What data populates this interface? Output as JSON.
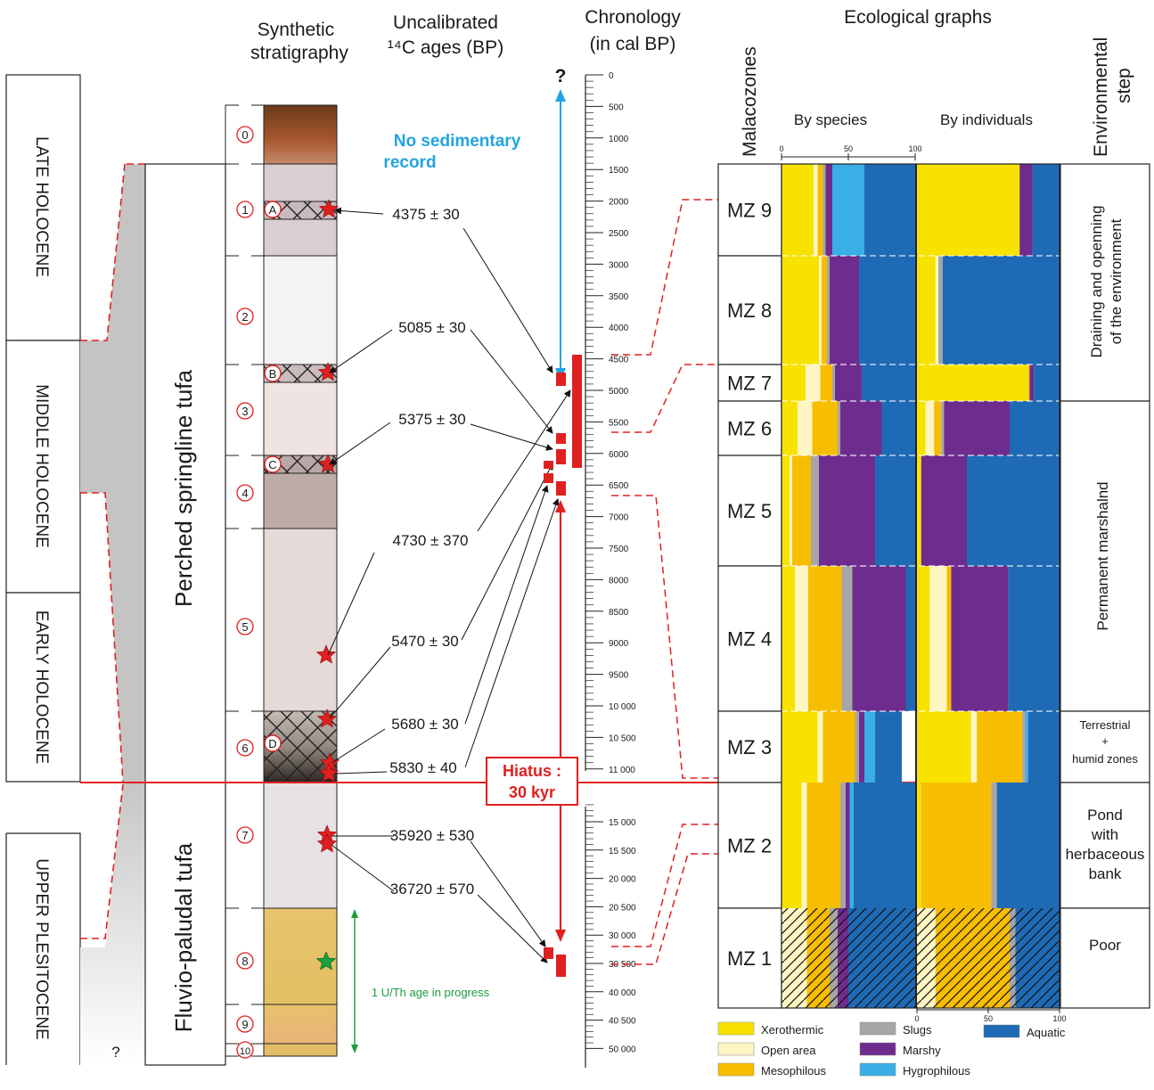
{
  "headers": {
    "stratigraphy": [
      "Synthetic",
      "stratigraphy"
    ],
    "ages": [
      "Uncalibrated",
      "¹⁴C ages (BP)"
    ],
    "chronology": [
      "Chronology",
      "(in cal BP)"
    ],
    "malacozones": "Malacozones",
    "ecological": "Ecological graphs",
    "by_species": "By species",
    "by_individuals": "By individuals",
    "environmental": [
      "Environmental",
      "step"
    ]
  },
  "epochs": [
    "LATE HOLOCENE",
    "MIDDLE HOLOCENE",
    "EARLY HOLOCENE",
    "UPPER PLESITOCENE"
  ],
  "units": [
    "Perched springline tufa",
    "Fluvio-paludal tufa"
  ],
  "layers": [
    "0",
    "1",
    "2",
    "3",
    "4",
    "5",
    "6",
    "7",
    "8",
    "9",
    "10"
  ],
  "markers": [
    "A",
    "B",
    "C",
    "D"
  ],
  "dates": [
    "4375 ± 30",
    "5085 ± 30",
    "5375 ± 30",
    "4730 ± 370",
    "5470 ± 30",
    "5680 ± 30",
    "5830 ± 40",
    "35920 ± 530",
    "36720 ± 570"
  ],
  "chronology_ticks_upper": [
    "0",
    "500",
    "1000",
    "1500",
    "2000",
    "2500",
    "3000",
    "3500",
    "4000",
    "4500",
    "5000",
    "5500",
    "6000",
    "6500",
    "7000",
    "7500",
    "8000",
    "8500",
    "9000",
    "9500",
    "10 000",
    "10 500",
    "11 000"
  ],
  "chronology_ticks_lower": [
    "15 000",
    "15 500",
    "20 000",
    "20 500",
    "30 000",
    "30 500",
    "40 000",
    "40 500",
    "50 000"
  ],
  "no_record": [
    "No sedimentary",
    "record"
  ],
  "question_mark": "?",
  "hiatus": [
    "Hiatus :",
    "30 kyr"
  ],
  "uth_note": "1 U/Th age in progress",
  "axis_ticks": [
    "0",
    "50",
    "100"
  ],
  "colors": {
    "xerothermic": "#f7e200",
    "open_area": "#fdf5c2",
    "mesophilous": "#f7bd00",
    "slugs": "#a6a6a6",
    "marshy": "#6f2c8f",
    "hygrophilous": "#3aaee6",
    "aquatic": "#1f6ab5",
    "red": "#e02020",
    "blue": "#23a3df",
    "green": "#1b9e3b"
  },
  "malacozones": [
    {
      "label": "MZ 9",
      "species": [
        24,
        3,
        4,
        2,
        5,
        24,
        38
      ],
      "individuals": [
        72,
        0,
        0,
        0,
        9,
        0,
        19
      ]
    },
    {
      "label": "MZ 8",
      "species": [
        28,
        2,
        4,
        2,
        22,
        0,
        42
      ],
      "individuals": [
        13,
        2,
        0,
        3,
        0,
        0,
        82
      ]
    },
    {
      "label": "MZ 7",
      "species": [
        18,
        11,
        9,
        2,
        20,
        0,
        40
      ],
      "individuals": [
        78,
        0,
        1,
        0,
        3,
        0,
        18
      ]
    },
    {
      "label": "MZ 6",
      "species": [
        12,
        11,
        19,
        2,
        31,
        0,
        25
      ],
      "individuals": [
        6,
        6,
        5,
        2,
        46,
        0,
        35
      ]
    },
    {
      "label": "MZ 5",
      "species": [
        6,
        2,
        14,
        6,
        42,
        0,
        30
      ],
      "individuals": [
        3,
        0,
        0,
        0,
        32,
        0,
        65
      ]
    },
    {
      "label": "MZ 4",
      "species": [
        10,
        10,
        25,
        8,
        40,
        0,
        7
      ],
      "individuals": [
        9,
        12,
        3,
        0,
        40,
        0,
        36
      ]
    },
    {
      "label": "MZ 3",
      "species": [
        27,
        4,
        24,
        3,
        4,
        8,
        20
      ],
      "individuals": [
        38,
        4,
        32,
        2,
        0,
        2,
        22
      ]
    },
    {
      "label": "MZ 2",
      "species": [
        15,
        4,
        25,
        4,
        3,
        3,
        46
      ],
      "individuals": [
        3,
        0,
        49,
        4,
        0,
        0,
        44
      ]
    },
    {
      "label": "MZ 1",
      "species": [
        0,
        19,
        17,
        6,
        8,
        0,
        50
      ],
      "individuals": [
        0,
        13,
        52,
        4,
        0,
        0,
        31
      ]
    }
  ],
  "environment_steps": [
    "Draining and openning of the environment",
    "Permanent marshalnd",
    "Terrestrial + humid zones",
    "Pond with herbaceous bank",
    "Poor"
  ],
  "env_small": [
    "Terrestrial",
    "+",
    "humid zones"
  ],
  "env_pond": [
    "Pond",
    "with",
    "herbaceous",
    "bank"
  ],
  "env_drain": [
    "Draining and openning",
    "of the environment"
  ],
  "legend": [
    {
      "label": "Xerothermic",
      "key": "xerothermic"
    },
    {
      "label": "Open area",
      "key": "open_area"
    },
    {
      "label": "Mesophilous",
      "key": "mesophilous"
    },
    {
      "label": "Slugs",
      "key": "slugs"
    },
    {
      "label": "Marshy",
      "key": "marshy"
    },
    {
      "label": "Hygrophilous",
      "key": "hygrophilous"
    },
    {
      "label": "Aquatic",
      "key": "aquatic"
    }
  ]
}
